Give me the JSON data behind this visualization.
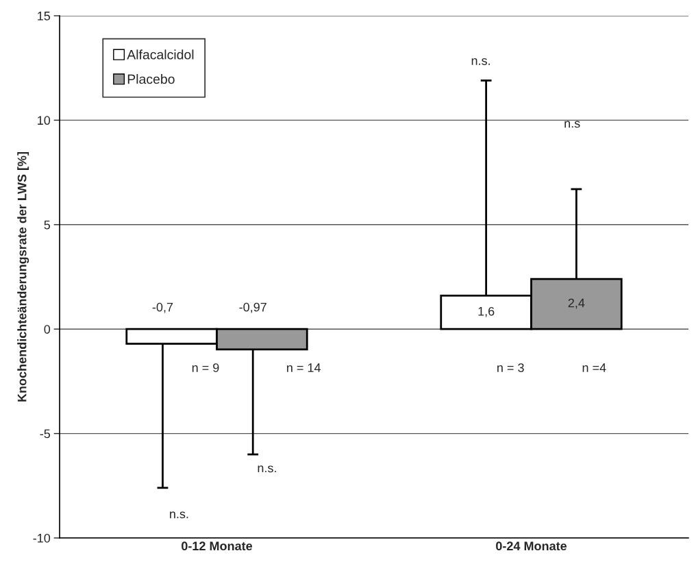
{
  "chart_data": {
    "type": "bar",
    "ylabel": "Knochendichteänderungsrate der LWS [%]",
    "categories": [
      "0-12 Monate",
      "0-24 Monate"
    ],
    "series": [
      {
        "name": "Alfacalcidol",
        "color": "#ffffff",
        "values": [
          -0.7,
          1.6
        ],
        "errors": [
          [
            -7.6,
            -0.7
          ],
          [
            1.6,
            11.9
          ]
        ],
        "value_labels": [
          "-0,7",
          "1,6"
        ]
      },
      {
        "name": "Placebo",
        "color": "#999999",
        "values": [
          -0.97,
          2.4
        ],
        "errors": [
          [
            -6.0,
            -0.97
          ],
          [
            2.4,
            6.7
          ]
        ],
        "value_labels": [
          "-0,97",
          "2,4"
        ]
      }
    ],
    "annotations": [
      "n = 9",
      "n = 14",
      "n = 3",
      "n =4",
      "n.s.",
      "n.s.",
      "n.s.",
      "n.s"
    ],
    "ylim": [
      -10,
      15
    ],
    "yticks": [
      -10,
      -5,
      0,
      5,
      10,
      15
    ],
    "grid": "y",
    "legend": "top left"
  }
}
